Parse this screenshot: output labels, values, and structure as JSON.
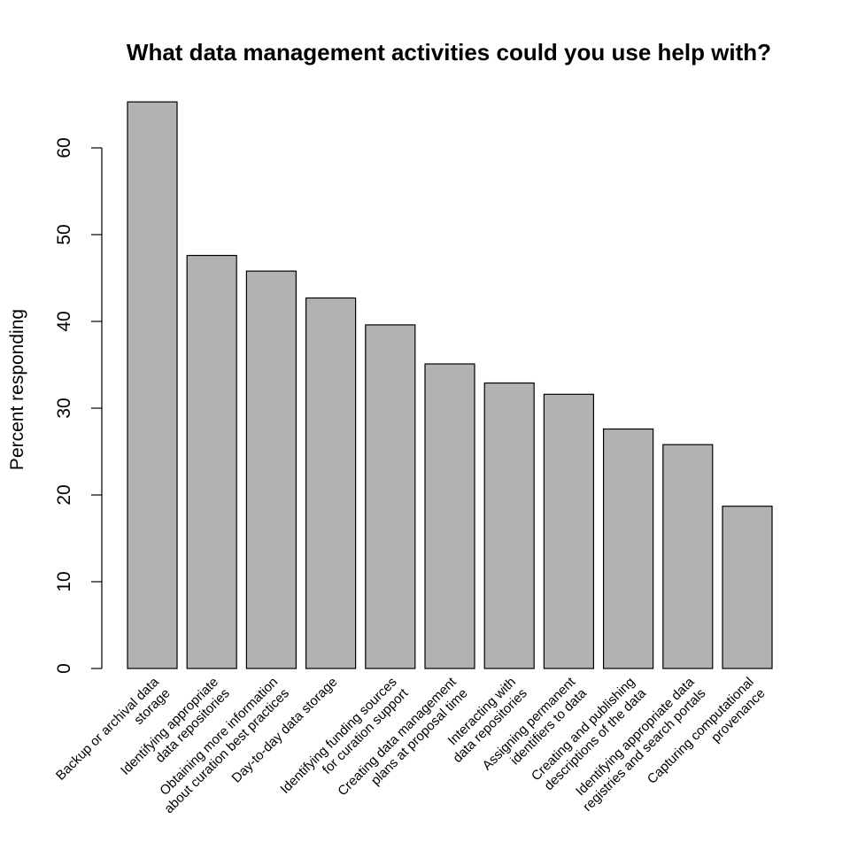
{
  "chart_data": {
    "type": "bar",
    "title": "What data management activities could you use help with?",
    "xlabel": "",
    "ylabel": "Percent responding",
    "ylim": [
      0,
      65
    ],
    "yticks": [
      0,
      10,
      20,
      30,
      40,
      50,
      60
    ],
    "grid": false,
    "bar_color": "#b2b2b2",
    "categories": [
      [
        "Backup or archival data",
        "storage"
      ],
      [
        "Identifying appropriate",
        "data repositories"
      ],
      [
        "Obtaining more information",
        "about curation best practices"
      ],
      [
        "Day-to-day data storage"
      ],
      [
        "Identifying funding sources",
        "for curation support"
      ],
      [
        "Creating data management",
        "plans at proposal time"
      ],
      [
        "Interacting with",
        "data repositories"
      ],
      [
        "Assigning permanent",
        "identifiers to data"
      ],
      [
        "Creating and publishing",
        "descriptions of the data"
      ],
      [
        "Identifying appropriate data",
        "registries and search portals"
      ],
      [
        "Capturing computational",
        "provenance"
      ]
    ],
    "values": [
      65.3,
      47.6,
      45.8,
      42.7,
      39.6,
      35.1,
      32.9,
      31.6,
      27.6,
      25.8,
      18.7
    ]
  }
}
